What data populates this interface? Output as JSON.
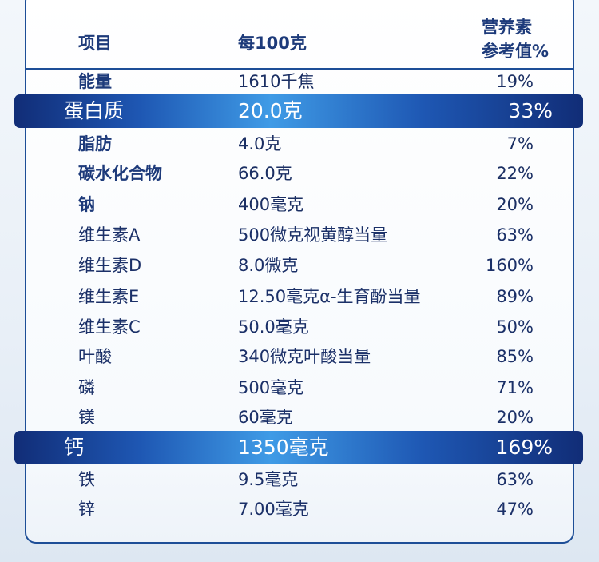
{
  "header": {
    "item": "项目",
    "per100g": "每100克",
    "nrv_line1": "营养素",
    "nrv_line2": "参考值%"
  },
  "rows": [
    {
      "name": "能量",
      "value": "1610千焦",
      "nrv": "19%"
    },
    {
      "name": "蛋白质",
      "value": "20.0克",
      "nrv": "33%"
    },
    {
      "name": "脂肪",
      "value": "4.0克",
      "nrv": "7%"
    },
    {
      "name": "碳水化合物",
      "value": "66.0克",
      "nrv": "22%"
    },
    {
      "name": "钠",
      "value": "400毫克",
      "nrv": "20%"
    },
    {
      "name": "维生素A",
      "value": "500微克视黄醇当量",
      "nrv": "63%"
    },
    {
      "name": "维生素D",
      "value": "8.0微克",
      "nrv": "160%"
    },
    {
      "name": "维生素E",
      "value": "12.50毫克α-生育酚当量",
      "nrv": "89%"
    },
    {
      "name": "维生素C",
      "value": "50.0毫克",
      "nrv": "50%"
    },
    {
      "name": "叶酸",
      "value": "340微克叶酸当量",
      "nrv": "85%"
    },
    {
      "name": "磷",
      "value": "500毫克",
      "nrv": "71%"
    },
    {
      "name": "镁",
      "value": "60毫克",
      "nrv": "20%"
    },
    {
      "name": "钙",
      "value": "1350毫克",
      "nrv": "169%"
    },
    {
      "name": "铁",
      "value": "9.5毫克",
      "nrv": "63%"
    },
    {
      "name": "锌",
      "value": "7.00毫克",
      "nrv": "47%"
    }
  ],
  "colors": {
    "border": "#1d4e97",
    "text": "#1b2f63",
    "highlight_dark": "#112d77",
    "highlight_light": "#3f9be6"
  }
}
